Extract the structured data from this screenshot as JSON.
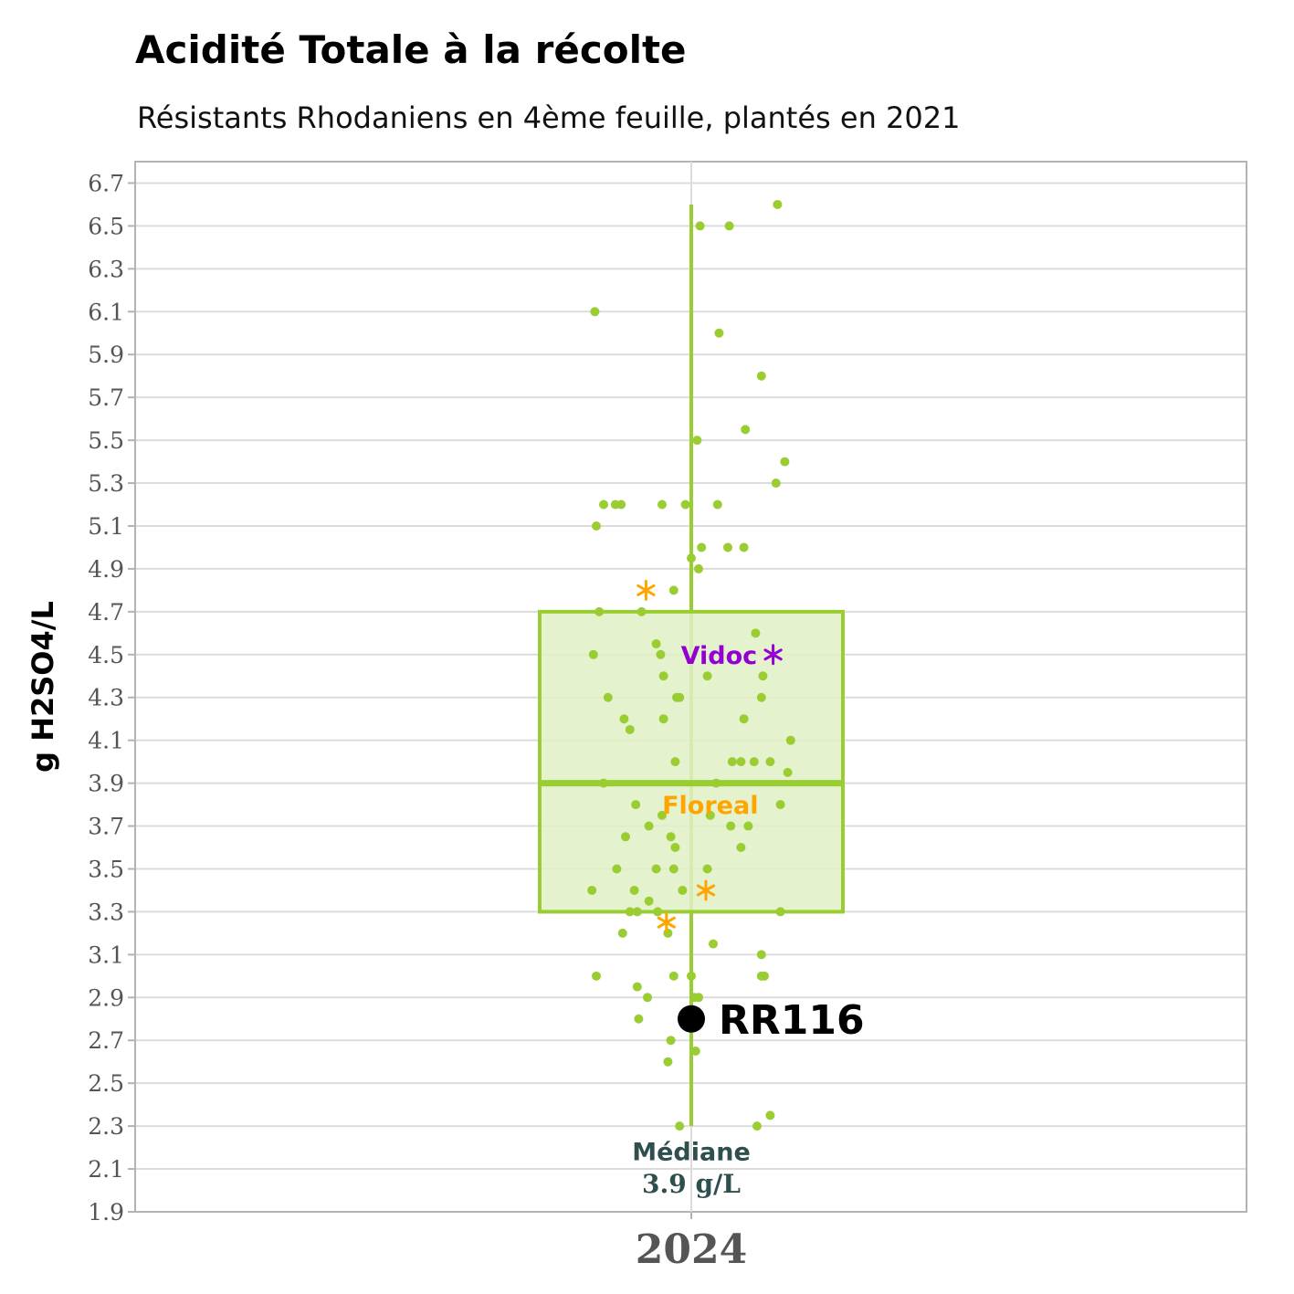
{
  "title": "Acidité Totale à la récolte",
  "subtitle": "Résistants Rhodaniens en 4ème feuille, plantés en 2021",
  "chart_data": {
    "type": "box",
    "ylabel": "g H2SO4/L",
    "xlabel": "",
    "categories": [
      "2024"
    ],
    "ylim": [
      1.9,
      6.8
    ],
    "yticks": [
      1.9,
      2.1,
      2.3,
      2.5,
      2.7,
      2.9,
      3.1,
      3.3,
      3.5,
      3.7,
      3.9,
      4.1,
      4.3,
      4.5,
      4.7,
      4.9,
      5.1,
      5.3,
      5.5,
      5.7,
      5.9,
      6.1,
      6.3,
      6.5,
      6.7
    ],
    "grid": true,
    "box": {
      "q1": 3.3,
      "median": 3.9,
      "q3": 4.7,
      "whisker_low": 2.3,
      "whisker_high": 6.6
    },
    "points": [
      {
        "jitter": 0.59,
        "y": 6.6
      },
      {
        "jitter": 0.06,
        "y": 6.5
      },
      {
        "jitter": 0.26,
        "y": 6.5
      },
      {
        "jitter": -0.66,
        "y": 6.1
      },
      {
        "jitter": 0.19,
        "y": 6.0
      },
      {
        "jitter": 0.48,
        "y": 5.8
      },
      {
        "jitter": 0.37,
        "y": 5.55
      },
      {
        "jitter": 0.04,
        "y": 5.5
      },
      {
        "jitter": 0.64,
        "y": 5.4
      },
      {
        "jitter": 0.58,
        "y": 5.3
      },
      {
        "jitter": -0.6,
        "y": 5.2
      },
      {
        "jitter": -0.52,
        "y": 5.2
      },
      {
        "jitter": -0.48,
        "y": 5.2
      },
      {
        "jitter": -0.2,
        "y": 5.2
      },
      {
        "jitter": -0.04,
        "y": 5.2
      },
      {
        "jitter": 0.18,
        "y": 5.2
      },
      {
        "jitter": -0.65,
        "y": 5.1
      },
      {
        "jitter": 0.07,
        "y": 5.0
      },
      {
        "jitter": 0.25,
        "y": 5.0
      },
      {
        "jitter": 0.36,
        "y": 5.0
      },
      {
        "jitter": 0.0,
        "y": 4.95
      },
      {
        "jitter": 0.05,
        "y": 4.9
      },
      {
        "jitter": -0.12,
        "y": 4.8
      },
      {
        "jitter": -0.63,
        "y": 4.7
      },
      {
        "jitter": -0.34,
        "y": 4.7
      },
      {
        "jitter": 0.44,
        "y": 4.6
      },
      {
        "jitter": -0.24,
        "y": 4.55
      },
      {
        "jitter": -0.67,
        "y": 4.5
      },
      {
        "jitter": -0.21,
        "y": 4.5
      },
      {
        "jitter": -0.19,
        "y": 4.4
      },
      {
        "jitter": 0.11,
        "y": 4.4
      },
      {
        "jitter": 0.49,
        "y": 4.4
      },
      {
        "jitter": -0.57,
        "y": 4.3
      },
      {
        "jitter": -0.1,
        "y": 4.3
      },
      {
        "jitter": -0.08,
        "y": 4.3
      },
      {
        "jitter": 0.48,
        "y": 4.3
      },
      {
        "jitter": -0.46,
        "y": 4.2
      },
      {
        "jitter": -0.19,
        "y": 4.2
      },
      {
        "jitter": 0.36,
        "y": 4.2
      },
      {
        "jitter": -0.42,
        "y": 4.15
      },
      {
        "jitter": 0.68,
        "y": 4.1
      },
      {
        "jitter": -0.11,
        "y": 4.0
      },
      {
        "jitter": 0.28,
        "y": 4.0
      },
      {
        "jitter": 0.34,
        "y": 4.0
      },
      {
        "jitter": 0.43,
        "y": 4.0
      },
      {
        "jitter": 0.54,
        "y": 4.0
      },
      {
        "jitter": 0.66,
        "y": 3.95
      },
      {
        "jitter": -0.6,
        "y": 3.9
      },
      {
        "jitter": 0.17,
        "y": 3.9
      },
      {
        "jitter": -0.38,
        "y": 3.8
      },
      {
        "jitter": 0.61,
        "y": 3.8
      },
      {
        "jitter": -0.2,
        "y": 3.75
      },
      {
        "jitter": 0.13,
        "y": 3.75
      },
      {
        "jitter": -0.29,
        "y": 3.7
      },
      {
        "jitter": 0.27,
        "y": 3.7
      },
      {
        "jitter": 0.39,
        "y": 3.7
      },
      {
        "jitter": -0.45,
        "y": 3.65
      },
      {
        "jitter": -0.14,
        "y": 3.65
      },
      {
        "jitter": -0.11,
        "y": 3.6
      },
      {
        "jitter": 0.34,
        "y": 3.6
      },
      {
        "jitter": -0.51,
        "y": 3.5
      },
      {
        "jitter": -0.24,
        "y": 3.5
      },
      {
        "jitter": -0.12,
        "y": 3.5
      },
      {
        "jitter": 0.11,
        "y": 3.5
      },
      {
        "jitter": -0.68,
        "y": 3.4
      },
      {
        "jitter": -0.39,
        "y": 3.4
      },
      {
        "jitter": -0.06,
        "y": 3.4
      },
      {
        "jitter": -0.29,
        "y": 3.35
      },
      {
        "jitter": -0.42,
        "y": 3.3
      },
      {
        "jitter": -0.37,
        "y": 3.3
      },
      {
        "jitter": -0.23,
        "y": 3.3
      },
      {
        "jitter": 0.61,
        "y": 3.3
      },
      {
        "jitter": -0.47,
        "y": 3.2
      },
      {
        "jitter": -0.16,
        "y": 3.2
      },
      {
        "jitter": 0.15,
        "y": 3.15
      },
      {
        "jitter": 0.48,
        "y": 3.1
      },
      {
        "jitter": -0.65,
        "y": 3.0
      },
      {
        "jitter": -0.12,
        "y": 3.0
      },
      {
        "jitter": 0.0,
        "y": 3.0
      },
      {
        "jitter": 0.48,
        "y": 3.0
      },
      {
        "jitter": 0.5,
        "y": 3.0
      },
      {
        "jitter": -0.37,
        "y": 2.95
      },
      {
        "jitter": -0.3,
        "y": 2.9
      },
      {
        "jitter": 0.02,
        "y": 2.9
      },
      {
        "jitter": 0.05,
        "y": 2.9
      },
      {
        "jitter": -0.36,
        "y": 2.8
      },
      {
        "jitter": -0.14,
        "y": 2.7
      },
      {
        "jitter": 0.03,
        "y": 2.65
      },
      {
        "jitter": -0.16,
        "y": 2.6
      },
      {
        "jitter": 0.54,
        "y": 2.35
      },
      {
        "jitter": -0.08,
        "y": 2.3
      },
      {
        "jitter": 0.45,
        "y": 2.3
      }
    ],
    "highlight_points": [
      {
        "label": "Floreal",
        "jitter": -0.31,
        "y": 4.8,
        "marker": "asterisk"
      },
      {
        "label": "Floreal",
        "jitter": 0.1,
        "y": 3.4,
        "marker": "asterisk"
      },
      {
        "label": "Floreal",
        "jitter": -0.17,
        "y": 3.25,
        "marker": "asterisk"
      },
      {
        "label": "Vidoc",
        "jitter": 0.56,
        "y": 4.5,
        "marker": "asterisk"
      }
    ],
    "annotations": [
      {
        "text": "Floreal",
        "x_offset": 0.13,
        "y": 3.8
      },
      {
        "text": "Vidoc",
        "x_offset": 0.19,
        "y": 4.5
      }
    ],
    "highlight_sample": {
      "label": "RR116",
      "y": 2.8
    },
    "median_label": {
      "line1": "Médiane",
      "line2": "3.9 g/L"
    },
    "colors": {
      "box_line": "#9acd32",
      "box_fill": "#e0f0c6",
      "points": "#9acd32",
      "floreal": "#ffa500",
      "vidoc": "#9400d3",
      "sample": "#000000",
      "median_label": "#2f4f4f",
      "grid": "#dcdcdc",
      "panel_border": "#b3b3b3",
      "tick_text": "#555555"
    }
  }
}
